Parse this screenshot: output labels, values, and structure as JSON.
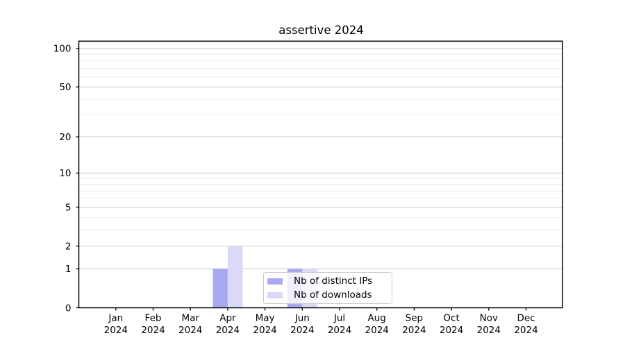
{
  "title": "assertive 2024",
  "chart_data": {
    "type": "bar",
    "title": "assertive 2024",
    "categories": [
      "Jan 2024",
      "Feb 2024",
      "Mar 2024",
      "Apr 2024",
      "May 2024",
      "Jun 2024",
      "Jul 2024",
      "Aug 2024",
      "Sep 2024",
      "Oct 2024",
      "Nov 2024",
      "Dec 2024"
    ],
    "series": [
      {
        "name": "Nb of distinct IPs",
        "color": "#a9a9f2",
        "values": [
          0,
          0,
          0,
          1,
          0,
          1,
          0,
          0,
          0,
          0,
          0,
          0
        ]
      },
      {
        "name": "Nb of downloads",
        "color": "#dadaf8",
        "values": [
          0,
          0,
          0,
          2,
          0,
          1,
          0,
          0,
          0,
          0,
          0,
          0
        ]
      }
    ],
    "xlabel": "",
    "ylabel": "",
    "y_ticks": [
      0,
      1,
      2,
      5,
      10,
      20,
      50,
      100
    ],
    "y_minor_gridlines": [
      3,
      4,
      6,
      7,
      8,
      9,
      30,
      40,
      60,
      70,
      80,
      90
    ],
    "scale": "log10(1+v)",
    "ylim": [
      0,
      114
    ],
    "grid": "major and minor horizontal gridlines",
    "legend_position": "lower center, overlapping Jun bars"
  },
  "colors": {
    "bar_distinct_ips": "#a9a9f2",
    "bar_downloads": "#dadaf8",
    "grid_major": "#cccccc",
    "grid_minor": "#ececec",
    "axis": "#000000",
    "legend_border": "#c9c9c9"
  }
}
